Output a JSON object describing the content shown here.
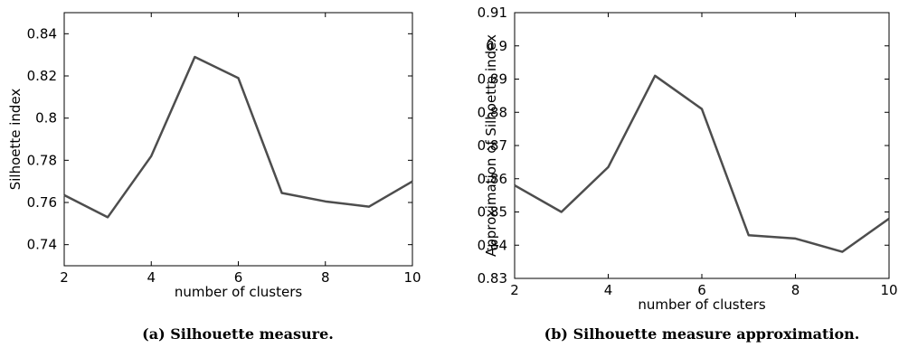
{
  "chart_data": [
    {
      "type": "line",
      "xlabel": "number of clusters",
      "ylabel": "Silhoette index",
      "caption": "(a) Silhouette measure.",
      "xlim": [
        2,
        10
      ],
      "ylim": [
        0.73,
        0.85
      ],
      "xticks": [
        2,
        4,
        6,
        8,
        10
      ],
      "yticks": [
        0.74,
        0.76,
        0.78,
        0.8,
        0.82,
        0.84
      ],
      "ytick_labels": [
        "0.74",
        "0.76",
        "0.78",
        "0.8",
        "0.82",
        "0.84"
      ],
      "grid": false,
      "series_color": "#4d4d4d",
      "x": [
        2,
        3,
        4,
        5,
        6,
        7,
        8,
        9,
        10
      ],
      "y": [
        0.7635,
        0.753,
        0.782,
        0.829,
        0.819,
        0.7645,
        0.7605,
        0.758,
        0.77
      ]
    },
    {
      "type": "line",
      "xlabel": "number of clusters",
      "ylabel": "Approximation of Silhoette index",
      "caption": "(b) Silhouette measure approximation.",
      "xlim": [
        2,
        10
      ],
      "ylim": [
        0.83,
        0.91
      ],
      "xticks": [
        2,
        4,
        6,
        8,
        10
      ],
      "yticks": [
        0.83,
        0.84,
        0.85,
        0.86,
        0.87,
        0.88,
        0.89,
        0.9,
        0.91
      ],
      "ytick_labels": [
        "0.83",
        "0.84",
        "0.85",
        "0.86",
        "0.87",
        "0.88",
        "0.89",
        "0.9",
        "0.91"
      ],
      "grid": false,
      "series_color": "#4d4d4d",
      "x": [
        2,
        3,
        4,
        5,
        6,
        7,
        8,
        9,
        10
      ],
      "y": [
        0.858,
        0.85,
        0.8635,
        0.891,
        0.881,
        0.843,
        0.842,
        0.838,
        0.848
      ]
    }
  ]
}
